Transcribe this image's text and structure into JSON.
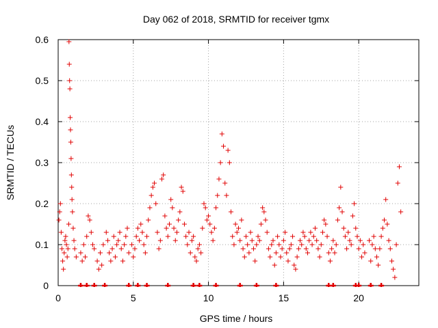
{
  "chart_data": {
    "type": "scatter",
    "title": "Day 062 of 2018, SRMTID for receiver tgmx",
    "xlabel": "GPS time / hours",
    "ylabel": "SRMTID / TECUs",
    "xlim": [
      0,
      24
    ],
    "ylim": [
      0,
      0.6
    ],
    "x_ticks": [
      0,
      5,
      10,
      15,
      20
    ],
    "y_ticks": [
      0,
      0.1,
      0.2,
      0.3,
      0.4,
      0.5,
      0.6
    ],
    "grid": true,
    "marker": "+",
    "marker_color": "#e00000",
    "series": [
      {
        "name": "SRMTID",
        "points": [
          [
            0.05,
            0.16
          ],
          [
            0.1,
            0.18
          ],
          [
            0.15,
            0.2
          ],
          [
            0.2,
            0.13
          ],
          [
            0.25,
            0.09
          ],
          [
            0.3,
            0.06
          ],
          [
            0.35,
            0.04
          ],
          [
            0.4,
            0.08
          ],
          [
            0.45,
            0.11
          ],
          [
            0.5,
            0.12
          ],
          [
            0.55,
            0.1
          ],
          [
            0.6,
            0.07
          ],
          [
            0.65,
            0.09
          ],
          [
            0.7,
            0.15
          ],
          [
            0.72,
            0.595
          ],
          [
            0.74,
            0.54
          ],
          [
            0.76,
            0.5
          ],
          [
            0.78,
            0.48
          ],
          [
            0.8,
            0.41
          ],
          [
            0.82,
            0.38
          ],
          [
            0.84,
            0.35
          ],
          [
            0.86,
            0.31
          ],
          [
            0.88,
            0.27
          ],
          [
            0.9,
            0.24
          ],
          [
            0.92,
            0.21
          ],
          [
            0.95,
            0.18
          ],
          [
            1.0,
            0.14
          ],
          [
            1.05,
            0.11
          ],
          [
            1.1,
            0.09
          ],
          [
            1.2,
            0.07
          ],
          [
            1.5,
            0.08
          ],
          [
            1.6,
            0.06
          ],
          [
            1.7,
            0.1
          ],
          [
            1.8,
            0.07
          ],
          [
            1.9,
            0.12
          ],
          [
            2.0,
            0.17
          ],
          [
            2.1,
            0.16
          ],
          [
            2.2,
            0.13
          ],
          [
            2.3,
            0.1
          ],
          [
            2.4,
            0.09
          ],
          [
            2.6,
            0.06
          ],
          [
            2.7,
            0.04
          ],
          [
            2.8,
            0.08
          ],
          [
            2.9,
            0.05
          ],
          [
            3.0,
            0.1
          ],
          [
            3.2,
            0.13
          ],
          [
            3.3,
            0.11
          ],
          [
            3.4,
            0.08
          ],
          [
            3.5,
            0.06
          ],
          [
            3.6,
            0.09
          ],
          [
            3.7,
            0.12
          ],
          [
            3.8,
            0.07
          ],
          [
            3.9,
            0.1
          ],
          [
            4.0,
            0.11
          ],
          [
            4.1,
            0.13
          ],
          [
            4.2,
            0.09
          ],
          [
            4.3,
            0.06
          ],
          [
            4.4,
            0.1
          ],
          [
            4.5,
            0.12
          ],
          [
            4.6,
            0.14
          ],
          [
            4.7,
            0.08
          ],
          [
            4.9,
            0.1
          ],
          [
            5.0,
            0.07
          ],
          [
            5.1,
            0.09
          ],
          [
            5.2,
            0.12
          ],
          [
            5.3,
            0.14
          ],
          [
            5.4,
            0.11
          ],
          [
            5.5,
            0.15
          ],
          [
            5.6,
            0.13
          ],
          [
            5.7,
            0.1
          ],
          [
            5.8,
            0.08
          ],
          [
            5.9,
            0.12
          ],
          [
            6.0,
            0.16
          ],
          [
            6.1,
            0.19
          ],
          [
            6.2,
            0.22
          ],
          [
            6.3,
            0.24
          ],
          [
            6.4,
            0.25
          ],
          [
            6.5,
            0.2
          ],
          [
            6.6,
            0.13
          ],
          [
            6.7,
            0.09
          ],
          [
            6.8,
            0.11
          ],
          [
            6.9,
            0.26
          ],
          [
            7.0,
            0.27
          ],
          [
            7.1,
            0.17
          ],
          [
            7.2,
            0.14
          ],
          [
            7.3,
            0.12
          ],
          [
            7.4,
            0.15
          ],
          [
            7.5,
            0.21
          ],
          [
            7.6,
            0.19
          ],
          [
            7.7,
            0.14
          ],
          [
            7.8,
            0.11
          ],
          [
            7.9,
            0.13
          ],
          [
            8.0,
            0.16
          ],
          [
            8.1,
            0.18
          ],
          [
            8.2,
            0.24
          ],
          [
            8.3,
            0.23
          ],
          [
            8.4,
            0.15
          ],
          [
            8.5,
            0.12
          ],
          [
            8.6,
            0.1
          ],
          [
            8.7,
            0.13
          ],
          [
            8.8,
            0.08
          ],
          [
            8.9,
            0.11
          ],
          [
            9.0,
            0.12
          ],
          [
            9.1,
            0.07
          ],
          [
            9.2,
            0.06
          ],
          [
            9.3,
            0.09
          ],
          [
            9.4,
            0.1
          ],
          [
            9.5,
            0.08
          ],
          [
            9.6,
            0.14
          ],
          [
            9.7,
            0.2
          ],
          [
            9.8,
            0.19
          ],
          [
            9.9,
            0.16
          ],
          [
            10.0,
            0.17
          ],
          [
            10.1,
            0.15
          ],
          [
            10.2,
            0.13
          ],
          [
            10.3,
            0.11
          ],
          [
            10.4,
            0.14
          ],
          [
            10.5,
            0.19
          ],
          [
            10.6,
            0.22
          ],
          [
            10.7,
            0.26
          ],
          [
            10.8,
            0.3
          ],
          [
            10.9,
            0.37
          ],
          [
            11.0,
            0.34
          ],
          [
            11.1,
            0.25
          ],
          [
            11.2,
            0.22
          ],
          [
            11.3,
            0.33
          ],
          [
            11.4,
            0.3
          ],
          [
            11.5,
            0.18
          ],
          [
            11.6,
            0.12
          ],
          [
            11.7,
            0.1
          ],
          [
            11.8,
            0.15
          ],
          [
            11.9,
            0.13
          ],
          [
            12.0,
            0.14
          ],
          [
            12.1,
            0.11
          ],
          [
            12.2,
            0.16
          ],
          [
            12.3,
            0.09
          ],
          [
            12.4,
            0.07
          ],
          [
            12.5,
            0.12
          ],
          [
            12.6,
            0.1
          ],
          [
            12.7,
            0.08
          ],
          [
            12.8,
            0.13
          ],
          [
            12.9,
            0.11
          ],
          [
            13.0,
            0.09
          ],
          [
            13.1,
            0.06
          ],
          [
            13.2,
            0.1
          ],
          [
            13.3,
            0.12
          ],
          [
            13.4,
            0.11
          ],
          [
            13.5,
            0.15
          ],
          [
            13.6,
            0.19
          ],
          [
            13.7,
            0.18
          ],
          [
            13.8,
            0.16
          ],
          [
            13.9,
            0.13
          ],
          [
            14.0,
            0.09
          ],
          [
            14.1,
            0.07
          ],
          [
            14.2,
            0.1
          ],
          [
            14.3,
            0.11
          ],
          [
            14.4,
            0.05
          ],
          [
            14.5,
            0.08
          ],
          [
            14.6,
            0.12
          ],
          [
            14.7,
            0.1
          ],
          [
            14.8,
            0.07
          ],
          [
            14.9,
            0.09
          ],
          [
            15.0,
            0.11
          ],
          [
            15.1,
            0.13
          ],
          [
            15.2,
            0.08
          ],
          [
            15.3,
            0.06
          ],
          [
            15.4,
            0.09
          ],
          [
            15.5,
            0.1
          ],
          [
            15.6,
            0.12
          ],
          [
            15.7,
            0.05
          ],
          [
            15.8,
            0.04
          ],
          [
            15.9,
            0.07
          ],
          [
            16.0,
            0.09
          ],
          [
            16.1,
            0.11
          ],
          [
            16.2,
            0.1
          ],
          [
            16.3,
            0.13
          ],
          [
            16.4,
            0.12
          ],
          [
            16.5,
            0.09
          ],
          [
            16.6,
            0.08
          ],
          [
            16.7,
            0.11
          ],
          [
            16.8,
            0.13
          ],
          [
            16.9,
            0.1
          ],
          [
            17.0,
            0.12
          ],
          [
            17.1,
            0.14
          ],
          [
            17.2,
            0.11
          ],
          [
            17.3,
            0.09
          ],
          [
            17.4,
            0.07
          ],
          [
            17.5,
            0.1
          ],
          [
            17.6,
            0.13
          ],
          [
            17.7,
            0.16
          ],
          [
            17.8,
            0.15
          ],
          [
            17.9,
            0.12
          ],
          [
            18.0,
            0.08
          ],
          [
            18.1,
            0.06
          ],
          [
            18.2,
            0.09
          ],
          [
            18.3,
            0.11
          ],
          [
            18.4,
            0.08
          ],
          [
            18.5,
            0.1
          ],
          [
            18.6,
            0.16
          ],
          [
            18.7,
            0.19
          ],
          [
            18.8,
            0.24
          ],
          [
            18.9,
            0.18
          ],
          [
            19.0,
            0.14
          ],
          [
            19.1,
            0.12
          ],
          [
            19.2,
            0.09
          ],
          [
            19.3,
            0.13
          ],
          [
            19.4,
            0.11
          ],
          [
            19.5,
            0.1
          ],
          [
            19.6,
            0.17
          ],
          [
            19.7,
            0.2
          ],
          [
            19.8,
            0.14
          ],
          [
            19.9,
            0.12
          ],
          [
            20.0,
            0.09
          ],
          [
            20.1,
            0.11
          ],
          [
            20.2,
            0.07
          ],
          [
            20.3,
            0.1
          ],
          [
            20.4,
            0.08
          ],
          [
            20.7,
            0.11
          ],
          [
            20.8,
            0.06
          ],
          [
            20.9,
            0.1
          ],
          [
            21.0,
            0.12
          ],
          [
            21.1,
            0.09
          ],
          [
            21.2,
            0.07
          ],
          [
            21.3,
            0.05
          ],
          [
            21.4,
            0.09
          ],
          [
            21.5,
            0.12
          ],
          [
            21.6,
            0.14
          ],
          [
            21.7,
            0.16
          ],
          [
            21.8,
            0.21
          ],
          [
            21.9,
            0.15
          ],
          [
            22.0,
            0.11
          ],
          [
            22.1,
            0.09
          ],
          [
            22.2,
            0.06
          ],
          [
            22.3,
            0.04
          ],
          [
            22.4,
            0.02
          ],
          [
            22.5,
            0.1
          ],
          [
            22.6,
            0.25
          ],
          [
            22.7,
            0.29
          ],
          [
            22.8,
            0.18
          ]
        ]
      }
    ],
    "outliers_at_zero_hours": [
      1.5,
      1.9,
      2.4,
      3.1,
      4.7,
      5.3,
      5.9,
      7.3,
      9.0,
      9.4,
      10.5,
      12.1,
      13.2,
      14.5,
      18.0,
      18.3,
      19.8,
      20.0,
      20.8,
      21.5
    ]
  }
}
